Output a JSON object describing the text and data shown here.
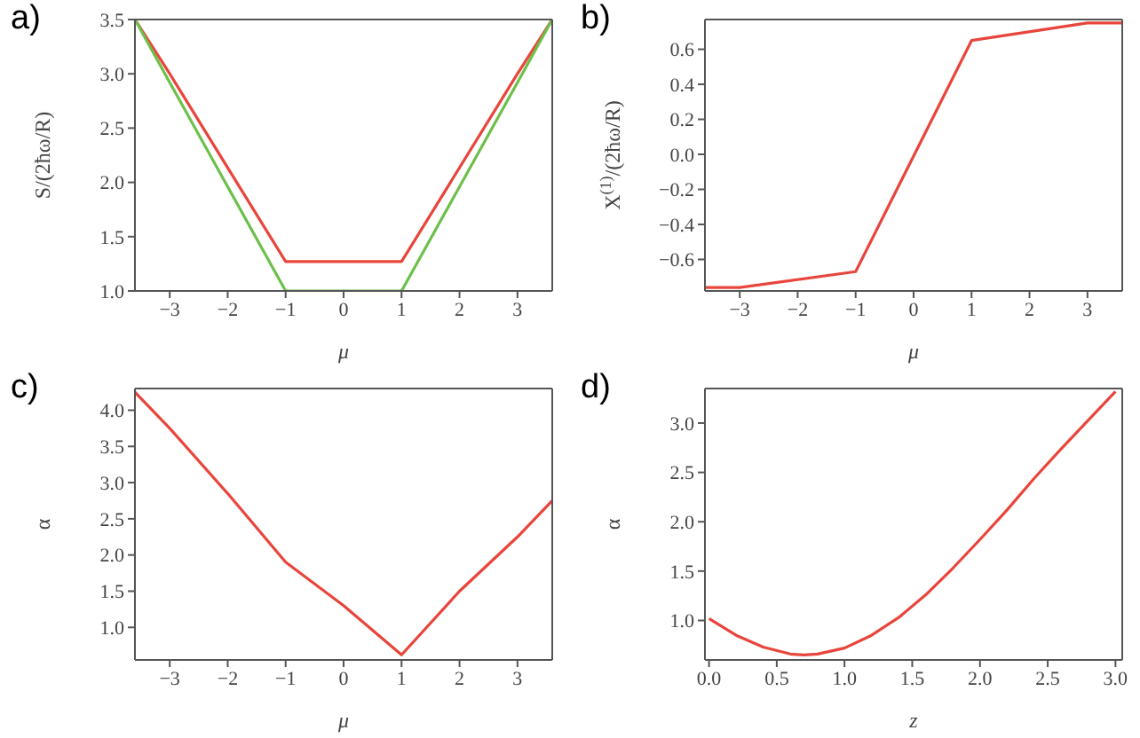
{
  "chart_data": [
    {
      "type": "line",
      "title": "a)",
      "xlabel": "μ",
      "ylabel": "S/(2ħω/R)",
      "x": [
        -3.6,
        -3,
        -1,
        1,
        3,
        3.6
      ],
      "marker": "none",
      "line_style": "solid",
      "xlim": [
        -3.6,
        3.6
      ],
      "xticks": [
        {
          "value": -3,
          "label": "−3"
        },
        {
          "value": -2,
          "label": "−2"
        },
        {
          "value": -1,
          "label": "−1"
        },
        0,
        1,
        2,
        3
      ],
      "ylim": [
        1,
        3.5
      ],
      "yticks": [
        {
          "value": 1,
          "label": "1.0"
        },
        1.5,
        {
          "value": 2,
          "label": "2.0"
        },
        2.5,
        {
          "value": 3,
          "label": "3.0"
        },
        3.5
      ],
      "series": [
        {
          "color": "#e8453c",
          "values": [
            3.5,
            3.0,
            1.27,
            1.27,
            3.0,
            3.5
          ]
        },
        {
          "color": "#6cc04a",
          "values": [
            3.5,
            2.92,
            1,
            1,
            2.92,
            3.5
          ]
        }
      ]
    },
    {
      "type": "line",
      "title": "b)",
      "xlabel": "μ",
      "ylabel": "X$^{(1)}$/(2ħω/R)",
      "x": [
        -3.6,
        -3,
        -1,
        1,
        3,
        3.6
      ],
      "marker": "none",
      "line_style": "solid",
      "xlim": [
        -3.6,
        3.6
      ],
      "xticks": [
        {
          "value": -3,
          "label": "−3"
        },
        {
          "value": -2,
          "label": "−2"
        },
        {
          "value": -1,
          "label": "−1"
        },
        0,
        1,
        2,
        3
      ],
      "ylim": [
        -0.78,
        0.77
      ],
      "yticks": [
        {
          "value": -0.6,
          "label": "−0.6"
        },
        {
          "value": -0.4,
          "label": "−0.4"
        },
        {
          "value": -0.2,
          "label": "−0.2"
        },
        {
          "value": 0,
          "label": "0.0"
        },
        0.2,
        0.4,
        0.6
      ],
      "series": [
        {
          "color": "#e8453c",
          "values": [
            -0.76,
            -0.76,
            -0.67,
            0.65,
            0.75,
            0.75
          ]
        }
      ]
    },
    {
      "type": "line",
      "title": "c)",
      "xlabel": "μ",
      "ylabel": "α",
      "x": [
        -3.6,
        -3,
        -2,
        -1,
        0,
        1,
        2,
        3,
        3.6
      ],
      "marker": "none",
      "line_style": "solid",
      "xlim": [
        -3.6,
        3.6
      ],
      "xticks": [
        {
          "value": -3,
          "label": "−3"
        },
        {
          "value": -2,
          "label": "−2"
        },
        {
          "value": -1,
          "label": "−1"
        },
        0,
        1,
        2,
        3
      ],
      "ylim": [
        0.55,
        4.3
      ],
      "yticks": [
        {
          "value": 1,
          "label": "1.0"
        },
        1.5,
        {
          "value": 2,
          "label": "2.0"
        },
        2.5,
        {
          "value": 3,
          "label": "3.0"
        },
        3.5,
        {
          "value": 4,
          "label": "4.0"
        }
      ],
      "series": [
        {
          "color": "#e8453c",
          "values": [
            4.25,
            3.75,
            2.85,
            1.9,
            1.3,
            0.62,
            1.5,
            2.25,
            2.75
          ]
        }
      ]
    },
    {
      "type": "line",
      "title": "d)",
      "xlabel": "z",
      "ylabel": "α",
      "x": [
        0,
        0.2,
        0.4,
        0.6,
        0.7,
        0.8,
        1.0,
        1.2,
        1.4,
        1.6,
        1.8,
        2.0,
        2.2,
        2.4,
        2.6,
        2.8,
        3.0
      ],
      "marker": "none",
      "line_style": "solid",
      "xlim": [
        -0.03,
        3.05
      ],
      "xticks": [
        {
          "value": 0,
          "label": "0.0"
        },
        0.5,
        {
          "value": 1,
          "label": "1.0"
        },
        1.5,
        {
          "value": 2,
          "label": "2.0"
        },
        2.5,
        {
          "value": 3,
          "label": "3.0"
        }
      ],
      "ylim": [
        0.6,
        3.35
      ],
      "yticks": [
        {
          "value": 1,
          "label": "1.0"
        },
        1.5,
        {
          "value": 2,
          "label": "2.0"
        },
        2.5,
        {
          "value": 3,
          "label": "3.0"
        }
      ],
      "series": [
        {
          "color": "#e8453c",
          "values": [
            1.02,
            0.85,
            0.73,
            0.66,
            0.65,
            0.66,
            0.72,
            0.85,
            1.03,
            1.26,
            1.53,
            1.82,
            2.12,
            2.44,
            2.74,
            3.03,
            3.32
          ]
        }
      ]
    }
  ]
}
